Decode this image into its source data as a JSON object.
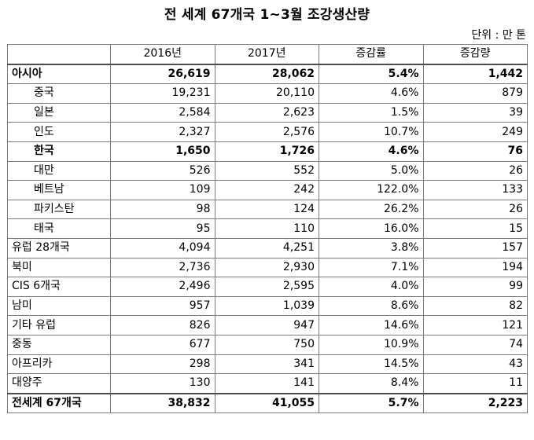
{
  "title": "전 세계 67개국 1~3월 조강생산량",
  "unit": "단위 : 만 톤",
  "columns": [
    "",
    "2016년",
    "2017년",
    "증감률",
    "증감량"
  ],
  "rows": [
    {
      "name": "아시아",
      "v2016": "26,619",
      "v2017": "28,062",
      "rate": "5.4%",
      "delta": "1,442",
      "bold": true,
      "sub": false
    },
    {
      "name": "중국",
      "v2016": "19,231",
      "v2017": "20,110",
      "rate": "4.6%",
      "delta": "879",
      "bold": false,
      "sub": true
    },
    {
      "name": "일본",
      "v2016": "2,584",
      "v2017": "2,623",
      "rate": "1.5%",
      "delta": "39",
      "bold": false,
      "sub": true
    },
    {
      "name": "인도",
      "v2016": "2,327",
      "v2017": "2,576",
      "rate": "10.7%",
      "delta": "249",
      "bold": false,
      "sub": true
    },
    {
      "name": "한국",
      "v2016": "1,650",
      "v2017": "1,726",
      "rate": "4.6%",
      "delta": "76",
      "bold": true,
      "sub": true
    },
    {
      "name": "대만",
      "v2016": "526",
      "v2017": "552",
      "rate": "5.0%",
      "delta": "26",
      "bold": false,
      "sub": true
    },
    {
      "name": "베트남",
      "v2016": "109",
      "v2017": "242",
      "rate": "122.0%",
      "delta": "133",
      "bold": false,
      "sub": true
    },
    {
      "name": "파키스탄",
      "v2016": "98",
      "v2017": "124",
      "rate": "26.2%",
      "delta": "26",
      "bold": false,
      "sub": true
    },
    {
      "name": "태국",
      "v2016": "95",
      "v2017": "110",
      "rate": "16.0%",
      "delta": "15",
      "bold": false,
      "sub": true
    },
    {
      "name": "유럽 28개국",
      "v2016": "4,094",
      "v2017": "4,251",
      "rate": "3.8%",
      "delta": "157",
      "bold": false,
      "sub": false
    },
    {
      "name": "북미",
      "v2016": "2,736",
      "v2017": "2,930",
      "rate": "7.1%",
      "delta": "194",
      "bold": false,
      "sub": false
    },
    {
      "name": "CIS 6개국",
      "v2016": "2,496",
      "v2017": "2,595",
      "rate": "4.0%",
      "delta": "99",
      "bold": false,
      "sub": false
    },
    {
      "name": "남미",
      "v2016": "957",
      "v2017": "1,039",
      "rate": "8.6%",
      "delta": "82",
      "bold": false,
      "sub": false
    },
    {
      "name": "기타 유럽",
      "v2016": "826",
      "v2017": "947",
      "rate": "14.6%",
      "delta": "121",
      "bold": false,
      "sub": false
    },
    {
      "name": "중동",
      "v2016": "677",
      "v2017": "750",
      "rate": "10.9%",
      "delta": "74",
      "bold": false,
      "sub": false
    },
    {
      "name": "아프리카",
      "v2016": "298",
      "v2017": "341",
      "rate": "14.5%",
      "delta": "43",
      "bold": false,
      "sub": false
    },
    {
      "name": "대양주",
      "v2016": "130",
      "v2017": "141",
      "rate": "8.4%",
      "delta": "11",
      "bold": false,
      "sub": false
    }
  ],
  "total": {
    "name": "전세계 67개국",
    "v2016": "38,832",
    "v2017": "41,055",
    "rate": "5.7%",
    "delta": "2,223"
  }
}
